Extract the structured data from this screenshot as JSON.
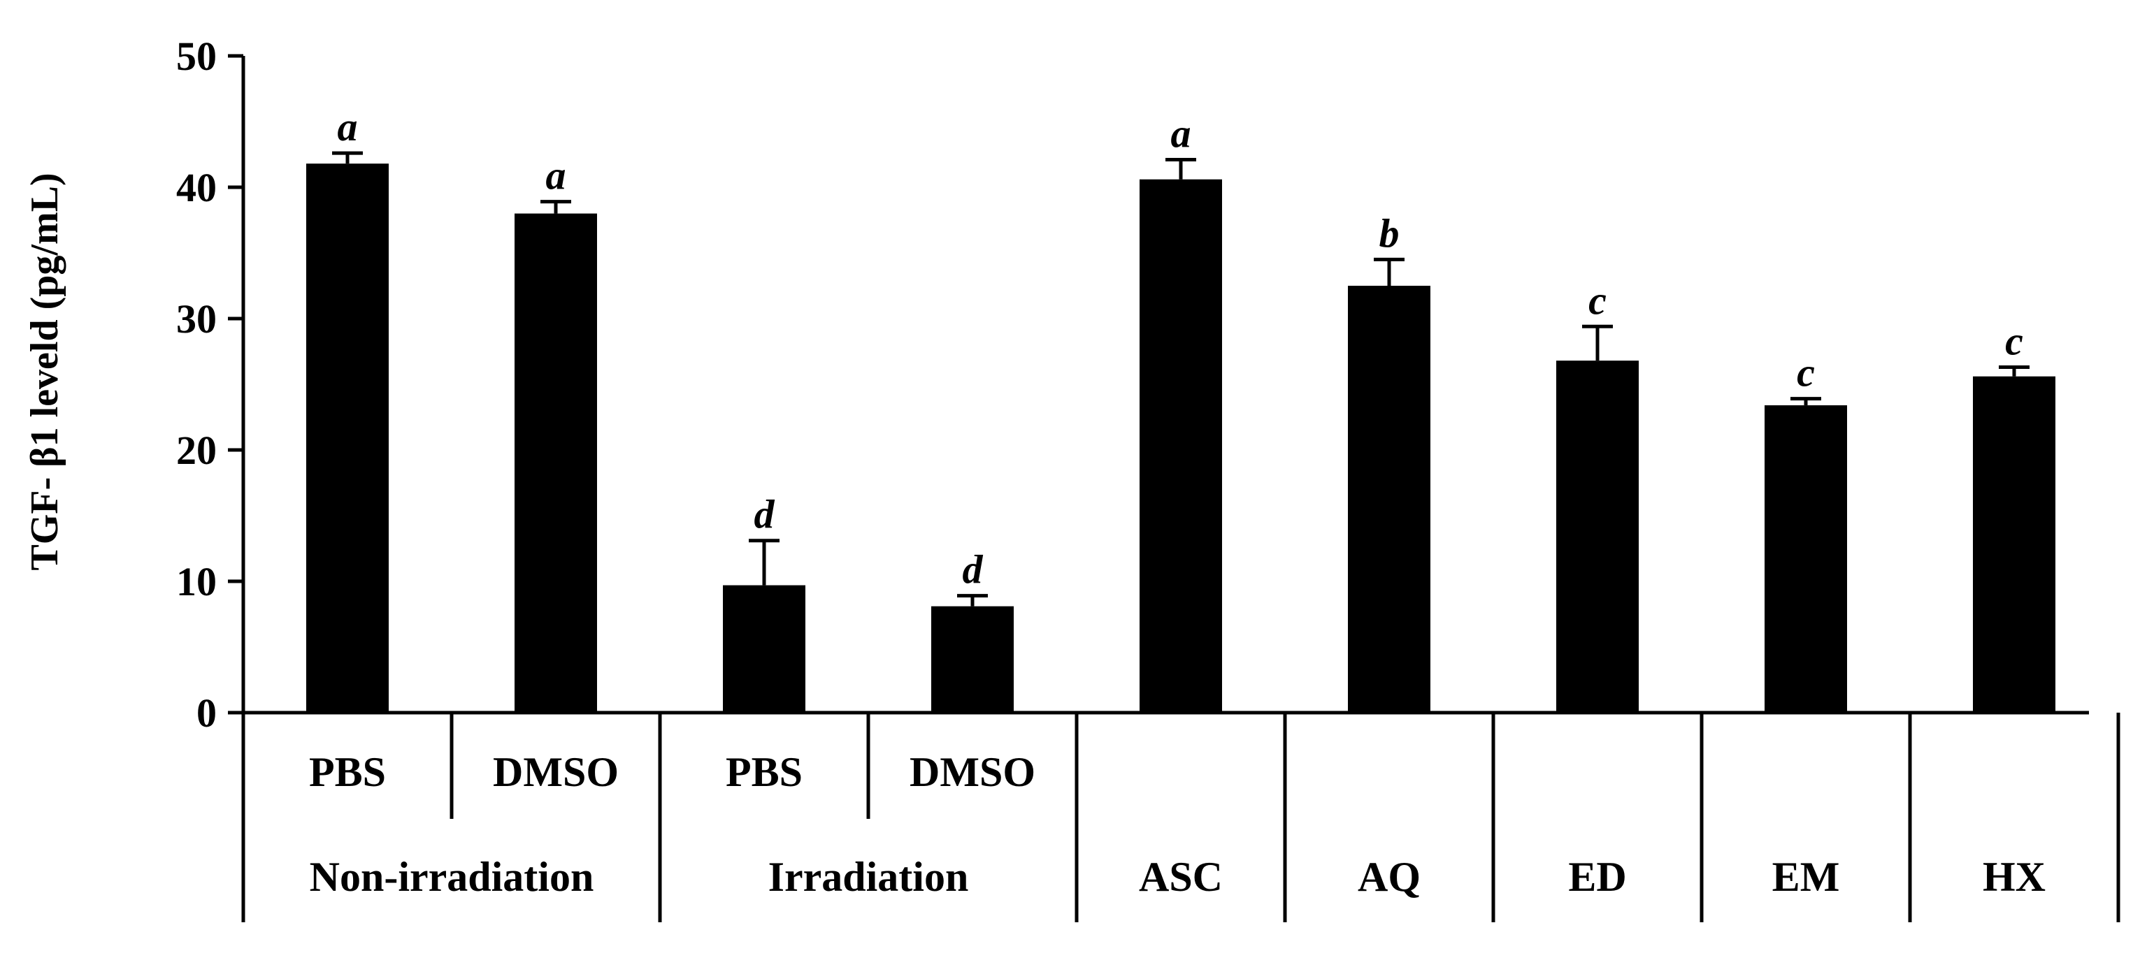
{
  "chart_data": {
    "type": "bar",
    "title": "",
    "xlabel": "",
    "ylabel": "TGF- β1 leveld (pg/mL)",
    "ylim": [
      0,
      50
    ],
    "yticks": [
      "0",
      "10",
      "20",
      "30",
      "40",
      "50"
    ],
    "grid": false,
    "color": "#000000",
    "bars": [
      {
        "label": "PBS",
        "group": "Non-irradiation",
        "value": 41.8,
        "error": 0.8,
        "letter": "a"
      },
      {
        "label": "DMSO",
        "group": "Non-irradiation",
        "value": 38.0,
        "error": 0.9,
        "letter": "a"
      },
      {
        "label": "PBS",
        "group": "Irradiation",
        "value": 9.7,
        "error": 3.4,
        "letter": "d"
      },
      {
        "label": "DMSO",
        "group": "Irradiation",
        "value": 8.1,
        "error": 0.8,
        "letter": "d"
      },
      {
        "label": "",
        "group": "ASC",
        "value": 40.6,
        "error": 1.5,
        "letter": "a"
      },
      {
        "label": "",
        "group": "AQ",
        "value": 32.5,
        "error": 2.0,
        "letter": "b"
      },
      {
        "label": "",
        "group": "ED",
        "value": 26.8,
        "error": 2.6,
        "letter": "c"
      },
      {
        "label": "",
        "group": "EM",
        "value": 23.4,
        "error": 0.5,
        "letter": "c"
      },
      {
        "label": "",
        "group": "HX",
        "value": 25.6,
        "error": 0.7,
        "letter": "c"
      }
    ],
    "groups": [
      "Non-irradiation",
      "Irradiation",
      "ASC",
      "AQ",
      "ED",
      "EM",
      "HX"
    ]
  }
}
